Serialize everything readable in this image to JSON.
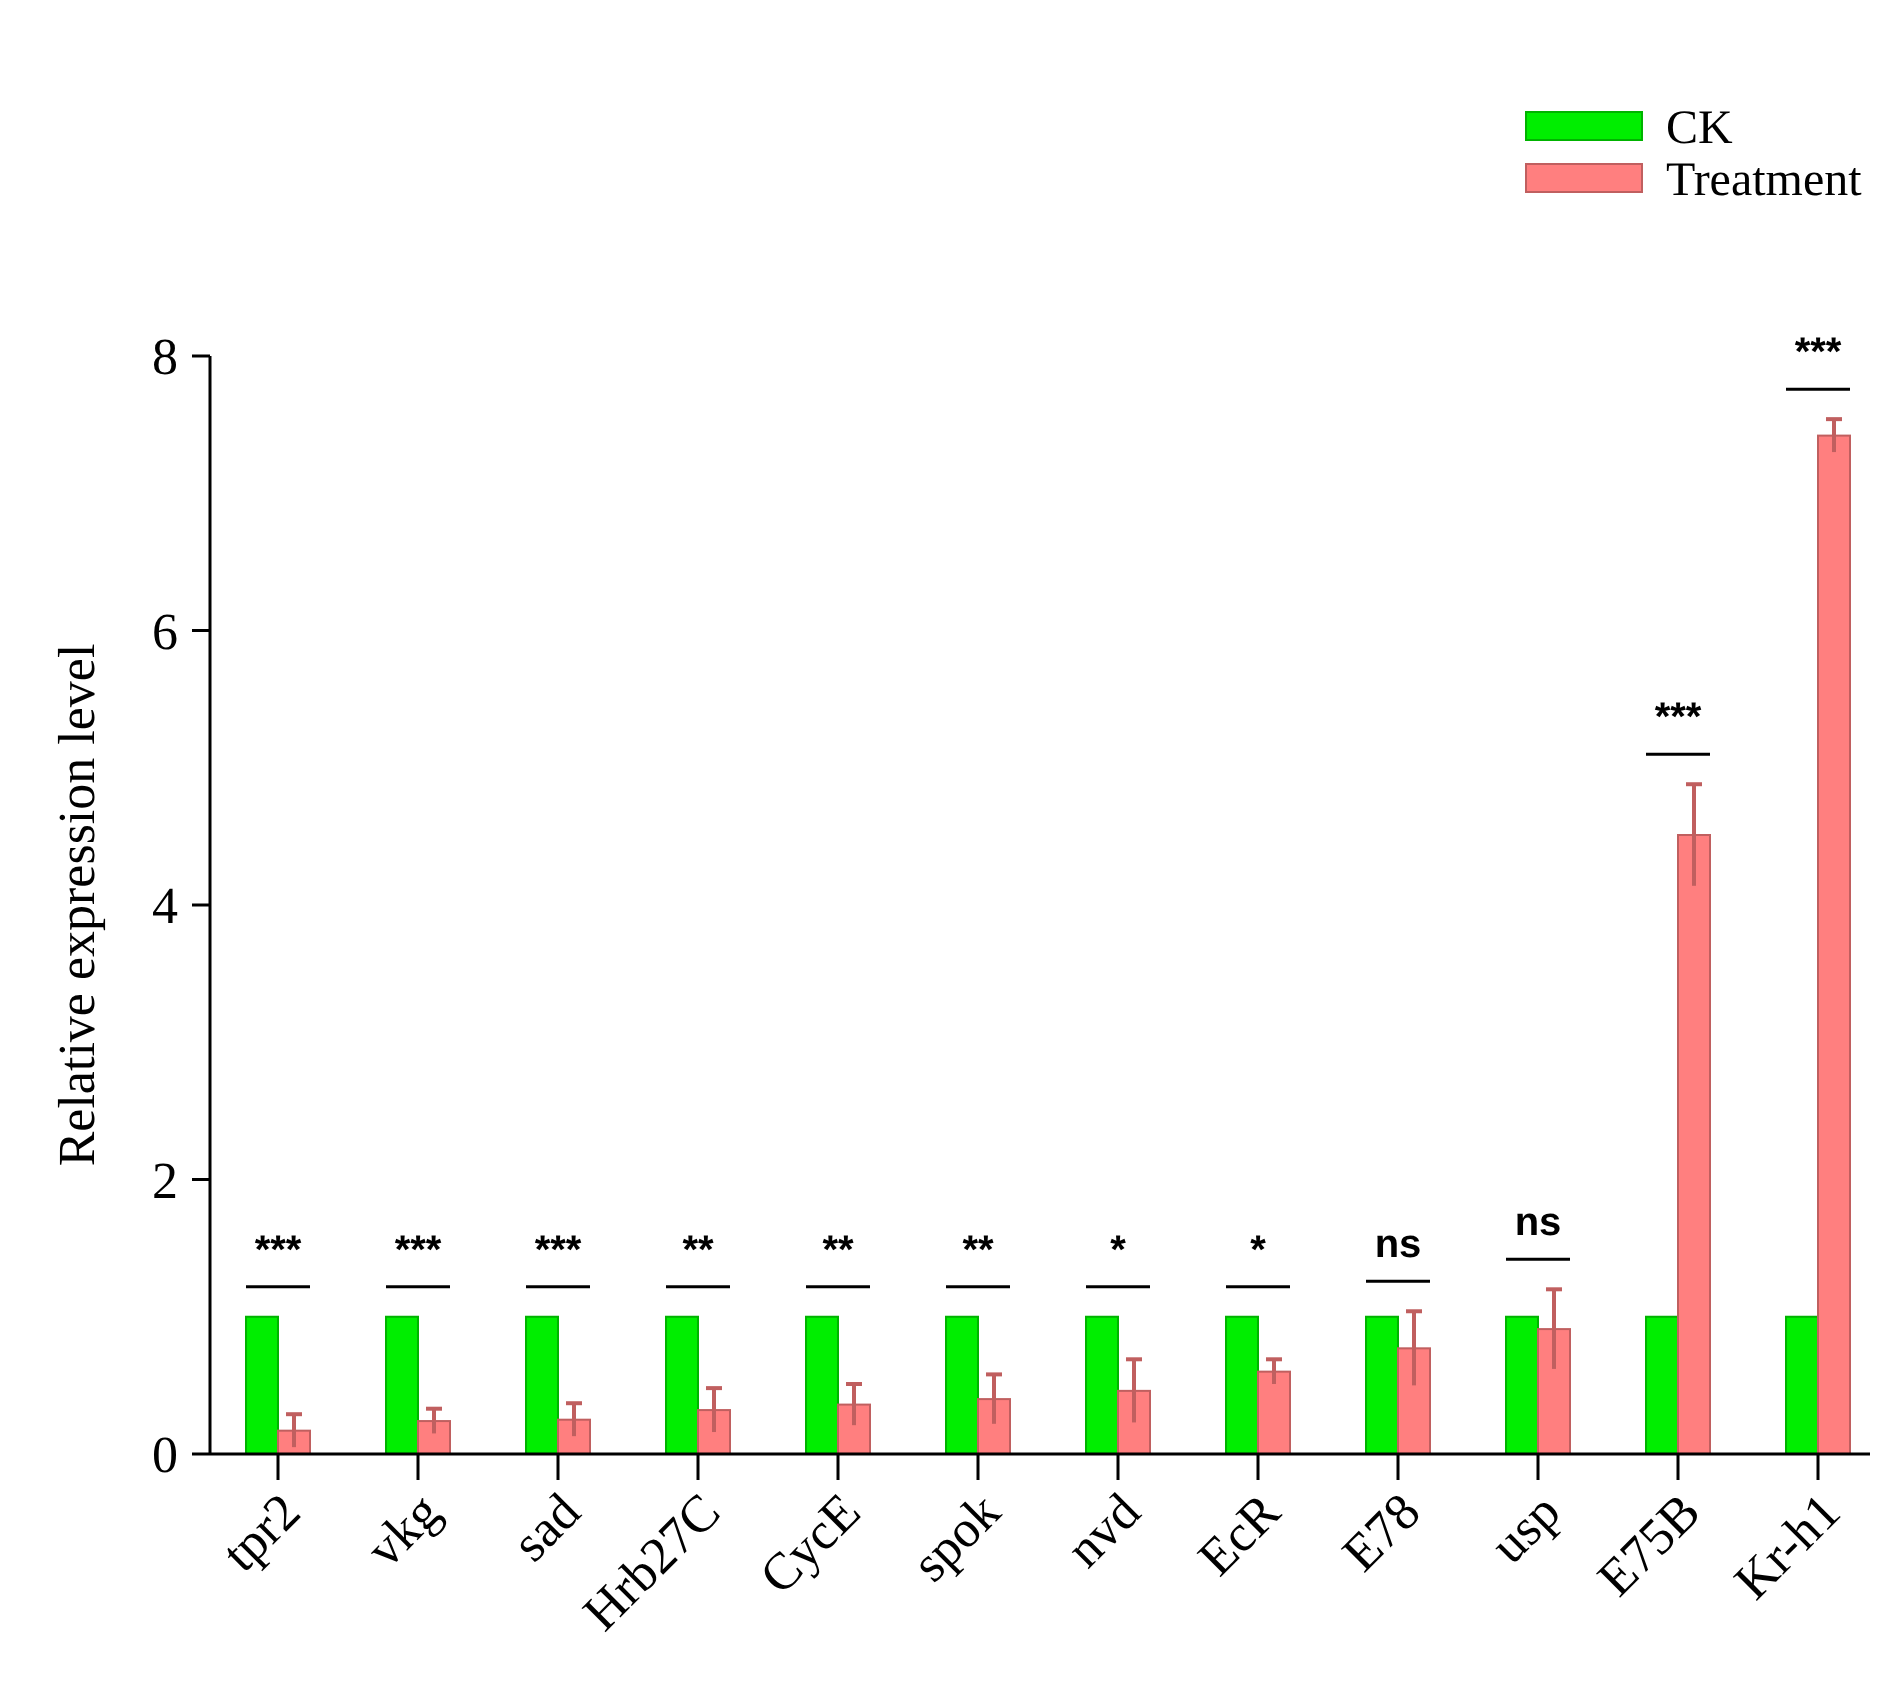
{
  "chart_data": {
    "type": "bar",
    "ylabel": "Relative expression level",
    "categories": [
      "tpr2",
      "vkg",
      "sad",
      "Hrb27C",
      "CycE",
      "spok",
      "nvd",
      "EcR",
      "E78",
      "usp",
      "E75B",
      "Kr-h1"
    ],
    "series": [
      {
        "name": "CK",
        "color": "#00ee00",
        "values": [
          1,
          1,
          1,
          1,
          1,
          1,
          1,
          1,
          1,
          1,
          1,
          1
        ]
      },
      {
        "name": "Treatment",
        "color": "#ff7f7f",
        "values": [
          0.17,
          0.24,
          0.25,
          0.32,
          0.36,
          0.4,
          0.46,
          0.6,
          0.77,
          0.91,
          4.51,
          7.42
        ],
        "errors": [
          0.12,
          0.09,
          0.12,
          0.16,
          0.15,
          0.18,
          0.23,
          0.09,
          0.27,
          0.29,
          0.37,
          0.12
        ]
      }
    ],
    "ylim": [
      0,
      8
    ],
    "yticks": [
      0,
      2,
      4,
      6,
      8
    ],
    "grid": false,
    "legend": "top right",
    "annotations": [
      "***",
      "***",
      "***",
      "**",
      "**",
      "**",
      "*",
      "*",
      "ns",
      "ns",
      "***",
      "***"
    ]
  }
}
